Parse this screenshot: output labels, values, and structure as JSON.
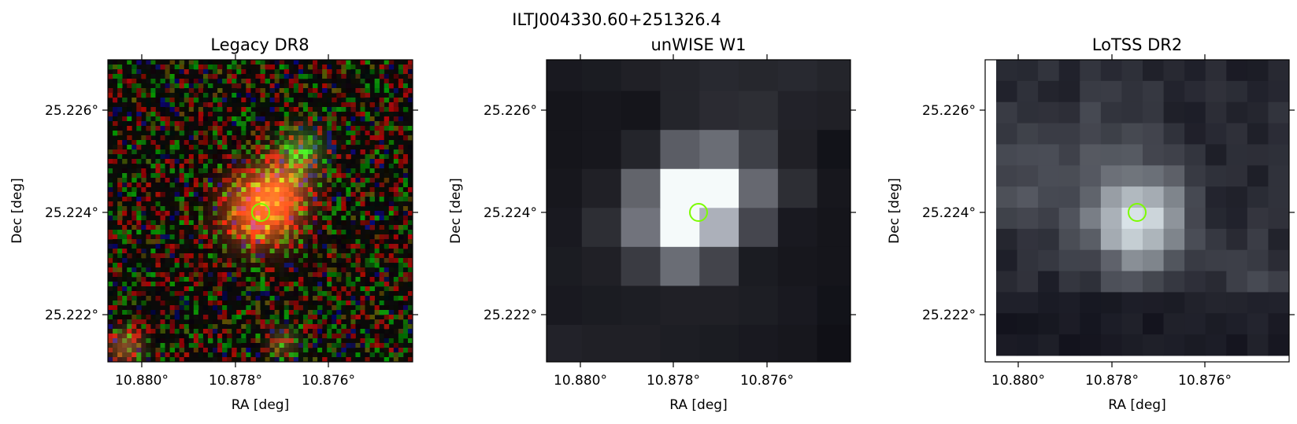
{
  "figure": {
    "title": "ILTJ004330.60+251326.4",
    "marker_color": "#7cfc00"
  },
  "panels": [
    {
      "id": "legacy",
      "title": "Legacy DR8",
      "xlabel": "RA [deg]",
      "ylabel": "Dec [deg]",
      "xticks": [
        "10.880°",
        "10.878°",
        "10.876°"
      ],
      "yticks": [
        "25.226°",
        "25.224°",
        "25.222°"
      ]
    },
    {
      "id": "unwise",
      "title": "unWISE W1",
      "xlabel": "RA [deg]",
      "ylabel": "Dec [deg]",
      "xticks": [
        "10.880°",
        "10.878°",
        "10.876°"
      ],
      "yticks": [
        "25.226°",
        "25.224°",
        "25.222°"
      ]
    },
    {
      "id": "lotss",
      "title": "LoTSS DR2",
      "xlabel": "RA [deg]",
      "ylabel": "Dec [deg]",
      "xticks": [
        "10.880°",
        "10.878°",
        "10.876°"
      ],
      "yticks": [
        "25.226°",
        "25.224°",
        "25.222°"
      ]
    }
  ]
}
